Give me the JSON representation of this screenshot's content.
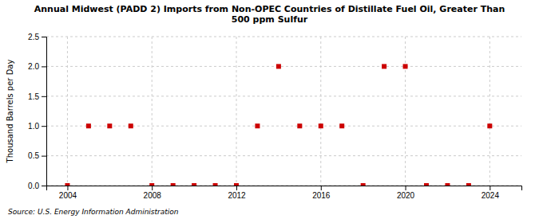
{
  "chart_data": {
    "type": "scatter",
    "title": "Annual Midwest (PADD 2) Imports from Non-OPEC Countries of Distillate Fuel Oil, Greater Than\n500 ppm Sulfur",
    "y_label": "Thousand Barrels per Day",
    "source": "Source: U.S. Energy Information Administration",
    "x": [
      2004,
      2005,
      2006,
      2007,
      2008,
      2009,
      2010,
      2011,
      2012,
      2013,
      2014,
      2015,
      2016,
      2017,
      2018,
      2019,
      2020,
      2021,
      2022,
      2023,
      2024
    ],
    "values": [
      0,
      1,
      1,
      1,
      0,
      0,
      0,
      0,
      0,
      1,
      2,
      1,
      1,
      1,
      0,
      2,
      2,
      0,
      0,
      0,
      1
    ],
    "color": "#cc0000",
    "marker": "square",
    "xlim": [
      2003.0,
      2025.5
    ],
    "xticks": [
      2004,
      2008,
      2012,
      2016,
      2020,
      2024
    ],
    "ylim": [
      0.0,
      2.5
    ],
    "yticks": [
      {
        "value": 0.0,
        "label": "0.0"
      },
      {
        "value": 0.5,
        "label": "0.5"
      },
      {
        "value": 1.0,
        "label": "1.0"
      },
      {
        "value": 1.5,
        "label": "1.5"
      },
      {
        "value": 2.0,
        "label": "2.0"
      },
      {
        "value": 2.5,
        "label": "2.5"
      }
    ],
    "grid": true
  }
}
